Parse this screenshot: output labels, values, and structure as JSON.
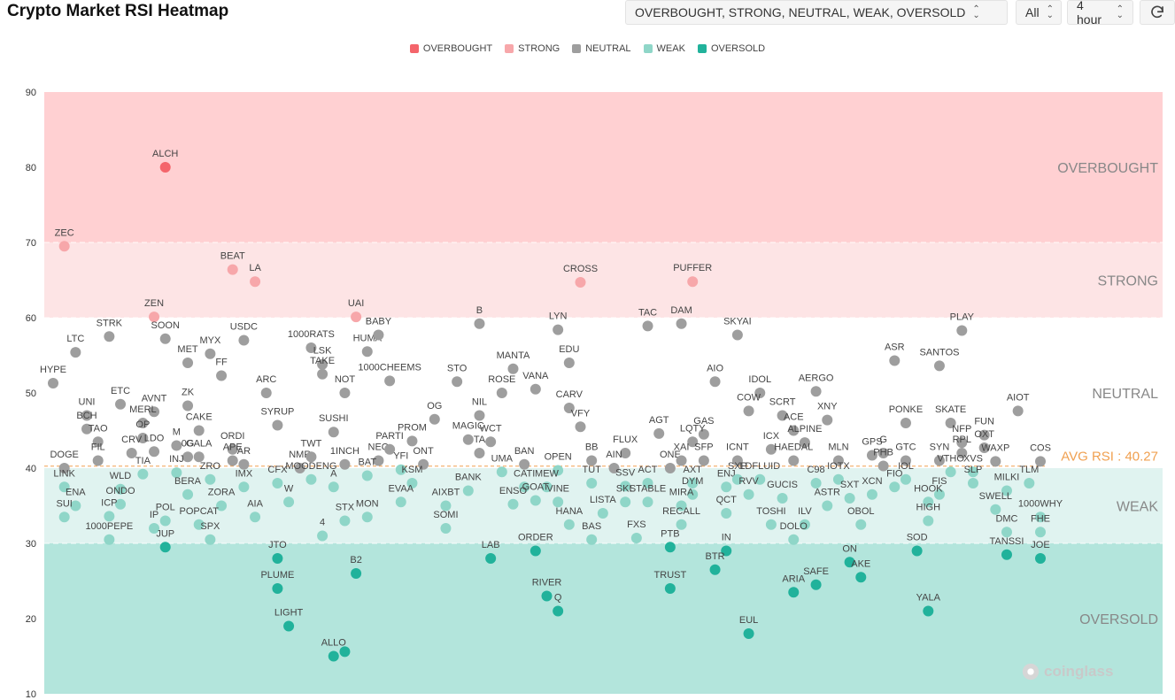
{
  "page": {
    "title": "Crypto Market RSI Heatmap"
  },
  "controls": {
    "levels": "OVERBOUGHT, STRONG, NEUTRAL, WEAK, OVERSOLD",
    "scope": "All",
    "interval": "4 hour"
  },
  "colors": {
    "overbought": "#f4656b",
    "strong": "#f7a7aa",
    "neutral": "#9e9e9e",
    "weak": "#8fd6c8",
    "oversold": "#21b29b",
    "avg": "#f0a050"
  },
  "legend": [
    {
      "label": "OVERBOUGHT",
      "color": "#f4656b"
    },
    {
      "label": "STRONG",
      "color": "#f7a7aa"
    },
    {
      "label": "NEUTRAL",
      "color": "#9e9e9e"
    },
    {
      "label": "WEAK",
      "color": "#8fd6c8"
    },
    {
      "label": "OVERSOLD",
      "color": "#21b29b"
    }
  ],
  "watermark": "coinglass",
  "chart_data": {
    "type": "scatter",
    "title": "Crypto Market RSI Heatmap",
    "ylim": [
      10,
      90
    ],
    "yticks": [
      10,
      20,
      30,
      40,
      50,
      60,
      70,
      80,
      90
    ],
    "zones": [
      {
        "label": "OVERBOUGHT",
        "from": 70,
        "to": 90,
        "color": "#ffd0d2"
      },
      {
        "label": "STRONG",
        "from": 60,
        "to": 70,
        "color": "#fde4e5"
      },
      {
        "label": "NEUTRAL",
        "from": 40,
        "to": 60,
        "color": "#ffffff"
      },
      {
        "label": "WEAK",
        "from": 30,
        "to": 40,
        "color": "#e0f3f0"
      },
      {
        "label": "OVERSOLD",
        "from": 10,
        "to": 30,
        "color": "#b3e5dc"
      }
    ],
    "avg_label": "AVG RSI : 40.27",
    "avg_rsi": 40.27,
    "grid": true,
    "legend_position": "top-center",
    "points": [
      {
        "name": "ALCH",
        "rank": 10,
        "rsi": 80
      },
      {
        "name": "ZEC",
        "rank": 1,
        "rsi": 69.5
      },
      {
        "name": "BEAT",
        "rank": 16,
        "rsi": 66.4
      },
      {
        "name": "LA",
        "rank": 18,
        "rsi": 64.8
      },
      {
        "name": "CROSS",
        "rank": 47,
        "rsi": 64.7
      },
      {
        "name": "PUFFER",
        "rank": 57,
        "rsi": 64.8
      },
      {
        "name": "ZEN",
        "rank": 9,
        "rsi": 60.1
      },
      {
        "name": "UAI",
        "rank": 27,
        "rsi": 60.1
      },
      {
        "name": "HYPE",
        "rank": 0,
        "rsi": 51.3
      },
      {
        "name": "LTC",
        "rank": 2,
        "rsi": 55.4
      },
      {
        "name": "STRK",
        "rank": 5,
        "rsi": 57.5
      },
      {
        "name": "SOON",
        "rank": 10,
        "rsi": 57.2
      },
      {
        "name": "MET",
        "rank": 12,
        "rsi": 54
      },
      {
        "name": "MYX",
        "rank": 14,
        "rsi": 55.2
      },
      {
        "name": "FF",
        "rank": 15,
        "rsi": 52.3
      },
      {
        "name": "USDC",
        "rank": 17,
        "rsi": 57
      },
      {
        "name": "1000RATS",
        "rank": 23,
        "rsi": 56
      },
      {
        "name": "LSK",
        "rank": 24,
        "rsi": 53.8
      },
      {
        "name": "TAKE",
        "rank": 24,
        "rsi": 52.5
      },
      {
        "name": "HUMA",
        "rank": 28,
        "rsi": 55.5
      },
      {
        "name": "BABY",
        "rank": 29,
        "rsi": 57.7
      },
      {
        "name": "NOT",
        "rank": 26,
        "rsi": 50
      },
      {
        "name": "1000CHEEMS",
        "rank": 30,
        "rsi": 51.6
      },
      {
        "name": "STO",
        "rank": 36,
        "rsi": 51.5
      },
      {
        "name": "B",
        "rank": 38,
        "rsi": 59.2
      },
      {
        "name": "MANTA",
        "rank": 41,
        "rsi": 53.2
      },
      {
        "name": "ROSE",
        "rank": 40,
        "rsi": 50
      },
      {
        "name": "VANA",
        "rank": 43,
        "rsi": 50.5
      },
      {
        "name": "LYN",
        "rank": 45,
        "rsi": 58.4
      },
      {
        "name": "EDU",
        "rank": 46,
        "rsi": 54
      },
      {
        "name": "CARV",
        "rank": 46,
        "rsi": 48
      },
      {
        "name": "VFY",
        "rank": 47,
        "rsi": 45.5
      },
      {
        "name": "TAC",
        "rank": 53,
        "rsi": 58.9
      },
      {
        "name": "DAM",
        "rank": 56,
        "rsi": 59.2
      },
      {
        "name": "SKYAI",
        "rank": 61,
        "rsi": 57.7
      },
      {
        "name": "AIO",
        "rank": 59,
        "rsi": 51.5
      },
      {
        "name": "IDOL",
        "rank": 63,
        "rsi": 50
      },
      {
        "name": "COW",
        "rank": 62,
        "rsi": 47.6
      },
      {
        "name": "SCRT",
        "rank": 65,
        "rsi": 47
      },
      {
        "name": "AERGO",
        "rank": 68,
        "rsi": 50.2
      },
      {
        "name": "XNY",
        "rank": 69,
        "rsi": 46.4
      },
      {
        "name": "ASR",
        "rank": 75,
        "rsi": 54.3
      },
      {
        "name": "SANTOS",
        "rank": 79,
        "rsi": 53.6
      },
      {
        "name": "PLAY",
        "rank": 81,
        "rsi": 58.3
      },
      {
        "name": "AIOT",
        "rank": 86,
        "rsi": 47.6
      },
      {
        "name": "PONKE",
        "rank": 76,
        "rsi": 46
      },
      {
        "name": "SKATE",
        "rank": 80,
        "rsi": 46
      },
      {
        "name": "FUN",
        "rank": 83,
        "rsi": 44.4
      },
      {
        "name": "ETC",
        "rank": 6,
        "rsi": 48.5
      },
      {
        "name": "AVNT",
        "rank": 9,
        "rsi": 47.5
      },
      {
        "name": "ZK",
        "rank": 12,
        "rsi": 48.3
      },
      {
        "name": "ARC",
        "rank": 19,
        "rsi": 50
      },
      {
        "name": "SYRUP",
        "rank": 20,
        "rsi": 45.7
      },
      {
        "name": "CAKE",
        "rank": 13,
        "rsi": 45
      },
      {
        "name": "SUSHI",
        "rank": 25,
        "rsi": 44.8
      },
      {
        "name": "PROM",
        "rank": 32,
        "rsi": 43.6
      },
      {
        "name": "OG",
        "rank": 34,
        "rsi": 46.5
      },
      {
        "name": "MAGIC",
        "rank": 37,
        "rsi": 43.8
      },
      {
        "name": "NIL",
        "rank": 38,
        "rsi": 47
      },
      {
        "name": "WCT",
        "rank": 39,
        "rsi": 43.5
      },
      {
        "name": "GAS",
        "rank": 58,
        "rsi": 44.5
      },
      {
        "name": "AGT",
        "rank": 54,
        "rsi": 44.6
      },
      {
        "name": "LQTY",
        "rank": 57,
        "rsi": 43.5
      },
      {
        "name": "ACE",
        "rank": 66,
        "rsi": 45
      },
      {
        "name": "ALPINE",
        "rank": 67,
        "rsi": 43.4
      },
      {
        "name": "NFP",
        "rank": 81,
        "rsi": 43.4
      },
      {
        "name": "OXT",
        "rank": 83,
        "rsi": 42.7
      },
      {
        "name": "DOGE",
        "rank": 1,
        "rsi": 40
      },
      {
        "name": "UNI",
        "rank": 3,
        "rsi": 47
      },
      {
        "name": "BCH",
        "rank": 3,
        "rsi": 45.2
      },
      {
        "name": "TAO",
        "rank": 4,
        "rsi": 43.5
      },
      {
        "name": "FIL",
        "rank": 4,
        "rsi": 41
      },
      {
        "name": "MERL",
        "rank": 8,
        "rsi": 46
      },
      {
        "name": "OP",
        "rank": 8,
        "rsi": 44
      },
      {
        "name": "CRV",
        "rank": 7,
        "rsi": 42
      },
      {
        "name": "LDO",
        "rank": 9,
        "rsi": 42.2
      },
      {
        "name": "M",
        "rank": 11,
        "rsi": 43
      },
      {
        "name": "0G",
        "rank": 12,
        "rsi": 41.5
      },
      {
        "name": "GALA",
        "rank": 13,
        "rsi": 41.5
      },
      {
        "name": "ORDI",
        "rank": 16,
        "rsi": 42.5
      },
      {
        "name": "APE",
        "rank": 16,
        "rsi": 41
      },
      {
        "name": "AR",
        "rank": 17,
        "rsi": 40.5
      },
      {
        "name": "NMR",
        "rank": 22,
        "rsi": 40
      },
      {
        "name": "TWT",
        "rank": 23,
        "rsi": 41.5
      },
      {
        "name": "1INCH",
        "rank": 26,
        "rsi": 40.5
      },
      {
        "name": "NEO",
        "rank": 29,
        "rsi": 41
      },
      {
        "name": "PARTI",
        "rank": 30,
        "rsi": 42.5
      },
      {
        "name": "YFI",
        "rank": 31,
        "rsi": 39.8
      },
      {
        "name": "ONT",
        "rank": 33,
        "rsi": 40.5
      },
      {
        "name": "TA",
        "rank": 38,
        "rsi": 42
      },
      {
        "name": "UMA",
        "rank": 40,
        "rsi": 39.5
      },
      {
        "name": "BAN",
        "rank": 42,
        "rsi": 40.5
      },
      {
        "name": "OPEN",
        "rank": 45,
        "rsi": 39.7
      },
      {
        "name": "BB",
        "rank": 48,
        "rsi": 41
      },
      {
        "name": "FLUX",
        "rank": 51,
        "rsi": 42
      },
      {
        "name": "AIN",
        "rank": 50,
        "rsi": 40
      },
      {
        "name": "ONE",
        "rank": 55,
        "rsi": 40
      },
      {
        "name": "XAI",
        "rank": 56,
        "rsi": 41
      },
      {
        "name": "SFP",
        "rank": 58,
        "rsi": 41
      },
      {
        "name": "ICNT",
        "rank": 61,
        "rsi": 41
      },
      {
        "name": "ICX",
        "rank": 64,
        "rsi": 42.5
      },
      {
        "name": "HAEDAL",
        "rank": 66,
        "rsi": 41
      },
      {
        "name": "MLN",
        "rank": 70,
        "rsi": 41
      },
      {
        "name": "GPS",
        "rank": 73,
        "rsi": 41.7
      },
      {
        "name": "G",
        "rank": 74,
        "rsi": 42
      },
      {
        "name": "GTC",
        "rank": 76,
        "rsi": 41
      },
      {
        "name": "PHB",
        "rank": 74,
        "rsi": 40.3
      },
      {
        "name": "SYN",
        "rank": 79,
        "rsi": 41
      },
      {
        "name": "RPL",
        "rank": 81,
        "rsi": 42
      },
      {
        "name": "WAXP",
        "rank": 84,
        "rsi": 40.9
      },
      {
        "name": "COS",
        "rank": 88,
        "rsi": 40.9
      },
      {
        "name": "XVS",
        "rank": 82,
        "rsi": 39.5
      },
      {
        "name": "VTHO",
        "rank": 80,
        "rsi": 39.5
      },
      {
        "name": "LINK",
        "rank": 1,
        "rsi": 37.5
      },
      {
        "name": "TIA",
        "rank": 8,
        "rsi": 39.2
      },
      {
        "name": "INJ",
        "rank": 11,
        "rsi": 39.4
      },
      {
        "name": "ZRO",
        "rank": 14,
        "rsi": 38.5
      },
      {
        "name": "IMX",
        "rank": 17,
        "rsi": 37.5
      },
      {
        "name": "CFX",
        "rank": 20,
        "rsi": 38
      },
      {
        "name": "MOODENG",
        "rank": 23,
        "rsi": 38.5
      },
      {
        "name": "A",
        "rank": 25,
        "rsi": 37.5
      },
      {
        "name": "BAT",
        "rank": 28,
        "rsi": 39
      },
      {
        "name": "KSM",
        "rank": 32,
        "rsi": 38
      },
      {
        "name": "BANK",
        "rank": 37,
        "rsi": 37
      },
      {
        "name": "CATI",
        "rank": 42,
        "rsi": 37.5
      },
      {
        "name": "MEW",
        "rank": 44,
        "rsi": 37.5
      },
      {
        "name": "TUT",
        "rank": 48,
        "rsi": 38
      },
      {
        "name": "SSV",
        "rank": 51,
        "rsi": 37.6
      },
      {
        "name": "ACT",
        "rank": 53,
        "rsi": 38
      },
      {
        "name": "AXT",
        "rank": 57,
        "rsi": 38
      },
      {
        "name": "ENJ",
        "rank": 60,
        "rsi": 37.5
      },
      {
        "name": "SXP",
        "rank": 61,
        "rsi": 38.5
      },
      {
        "name": "LDFLUID",
        "rank": 63,
        "rsi": 38.5
      },
      {
        "name": "C98",
        "rank": 68,
        "rsi": 38
      },
      {
        "name": "IOTX",
        "rank": 70,
        "rsi": 38.5
      },
      {
        "name": "FIO",
        "rank": 75,
        "rsi": 37.5
      },
      {
        "name": "IOL",
        "rank": 76,
        "rsi": 38.5
      },
      {
        "name": "FIS",
        "rank": 79,
        "rsi": 36.5
      },
      {
        "name": "SLP",
        "rank": 82,
        "rsi": 38
      },
      {
        "name": "MILKI",
        "rank": 85,
        "rsi": 37
      },
      {
        "name": "TLM",
        "rank": 87,
        "rsi": 38
      },
      {
        "name": "ENA",
        "rank": 2,
        "rsi": 35
      },
      {
        "name": "WLD",
        "rank": 6,
        "rsi": 37.2
      },
      {
        "name": "ONDO",
        "rank": 6,
        "rsi": 35.2
      },
      {
        "name": "SUI",
        "rank": 1,
        "rsi": 33.5
      },
      {
        "name": "ICP",
        "rank": 5,
        "rsi": 33.6
      },
      {
        "name": "BERA",
        "rank": 12,
        "rsi": 36.5
      },
      {
        "name": "ZORA",
        "rank": 15,
        "rsi": 35
      },
      {
        "name": "W",
        "rank": 21,
        "rsi": 35.5
      },
      {
        "name": "EVAA",
        "rank": 31,
        "rsi": 35.5
      },
      {
        "name": "AIXBT",
        "rank": 35,
        "rsi": 35
      },
      {
        "name": "ENSO",
        "rank": 41,
        "rsi": 35.2
      },
      {
        "name": "GOAT",
        "rank": 43,
        "rsi": 35.7
      },
      {
        "name": "VINE",
        "rank": 45,
        "rsi": 35.5
      },
      {
        "name": "LISTA",
        "rank": 49,
        "rsi": 34
      },
      {
        "name": "SKL",
        "rank": 51,
        "rsi": 35.5
      },
      {
        "name": "STABLE",
        "rank": 53,
        "rsi": 35.5
      },
      {
        "name": "DYM",
        "rank": 57,
        "rsi": 36.5
      },
      {
        "name": "MIRA",
        "rank": 56,
        "rsi": 35
      },
      {
        "name": "QCT",
        "rank": 60,
        "rsi": 34
      },
      {
        "name": "RVV",
        "rank": 62,
        "rsi": 36.5
      },
      {
        "name": "GUCIS",
        "rank": 65,
        "rsi": 36
      },
      {
        "name": "ASTR",
        "rank": 69,
        "rsi": 35
      },
      {
        "name": "SXT",
        "rank": 71,
        "rsi": 36
      },
      {
        "name": "XCN",
        "rank": 73,
        "rsi": 36.5
      },
      {
        "name": "HOOK",
        "rank": 78,
        "rsi": 35.5
      },
      {
        "name": "SWELL",
        "rank": 84,
        "rsi": 34.5
      },
      {
        "name": "1000WHY",
        "rank": 88,
        "rsi": 33.5
      },
      {
        "name": "POL",
        "rank": 10,
        "rsi": 33
      },
      {
        "name": "POPCAT",
        "rank": 13,
        "rsi": 32.5
      },
      {
        "name": "AIA",
        "rank": 18,
        "rsi": 33.5
      },
      {
        "name": "STX",
        "rank": 26,
        "rsi": 33
      },
      {
        "name": "MON",
        "rank": 28,
        "rsi": 33.5
      },
      {
        "name": "SOMI",
        "rank": 35,
        "rsi": 32
      },
      {
        "name": "HANA",
        "rank": 46,
        "rsi": 32.5
      },
      {
        "name": "RECALL",
        "rank": 56,
        "rsi": 32.5
      },
      {
        "name": "TOSHI",
        "rank": 64,
        "rsi": 32.5
      },
      {
        "name": "ILV",
        "rank": 67,
        "rsi": 32.5
      },
      {
        "name": "OBOL",
        "rank": 72,
        "rsi": 32.5
      },
      {
        "name": "HIGH",
        "rank": 78,
        "rsi": 33
      },
      {
        "name": "DMC",
        "rank": 85,
        "rsi": 31.5
      },
      {
        "name": "1000PEPE",
        "rank": 5,
        "rsi": 30.5
      },
      {
        "name": "IP",
        "rank": 9,
        "rsi": 32
      },
      {
        "name": "SPX",
        "rank": 14,
        "rsi": 30.5
      },
      {
        "name": "4",
        "rank": 24,
        "rsi": 31
      },
      {
        "name": "BAS",
        "rank": 48,
        "rsi": 30.5
      },
      {
        "name": "FXS",
        "rank": 52,
        "rsi": 30.7
      },
      {
        "name": "DOLO",
        "rank": 66,
        "rsi": 30.5
      },
      {
        "name": "FHE",
        "rank": 88,
        "rsi": 31.5
      },
      {
        "name": "JUP",
        "rank": 10,
        "rsi": 29.5
      },
      {
        "name": "JTO",
        "rank": 20,
        "rsi": 28
      },
      {
        "name": "B2",
        "rank": 27,
        "rsi": 26
      },
      {
        "name": "LAB",
        "rank": 39,
        "rsi": 28
      },
      {
        "name": "ORDER",
        "rank": 43,
        "rsi": 29
      },
      {
        "name": "PTB",
        "rank": 55,
        "rsi": 29.5
      },
      {
        "name": "IN",
        "rank": 60,
        "rsi": 29
      },
      {
        "name": "BTR",
        "rank": 59,
        "rsi": 26.5
      },
      {
        "name": "SOD",
        "rank": 77,
        "rsi": 29
      },
      {
        "name": "TANSSI",
        "rank": 85,
        "rsi": 28.5
      },
      {
        "name": "JOE",
        "rank": 88,
        "rsi": 28
      },
      {
        "name": "ON",
        "rank": 71,
        "rsi": 27.5
      },
      {
        "name": "AKE",
        "rank": 72,
        "rsi": 25.5
      },
      {
        "name": "PLUME",
        "rank": 20,
        "rsi": 24
      },
      {
        "name": "TRUST",
        "rank": 55,
        "rsi": 24
      },
      {
        "name": "SAFE",
        "rank": 68,
        "rsi": 24.5
      },
      {
        "name": "ARIA",
        "rank": 66,
        "rsi": 23.5
      },
      {
        "name": "RIVER",
        "rank": 44,
        "rsi": 23
      },
      {
        "name": "Q",
        "rank": 45,
        "rsi": 21
      },
      {
        "name": "YALA",
        "rank": 78,
        "rsi": 21
      },
      {
        "name": "LIGHT",
        "rank": 21,
        "rsi": 19
      },
      {
        "name": "EUL",
        "rank": 62,
        "rsi": 18
      },
      {
        "name": "ALLO",
        "rank": 25,
        "rsi": 15
      },
      {
        "name": "",
        "rank": 26,
        "rsi": 15.6
      }
    ]
  }
}
